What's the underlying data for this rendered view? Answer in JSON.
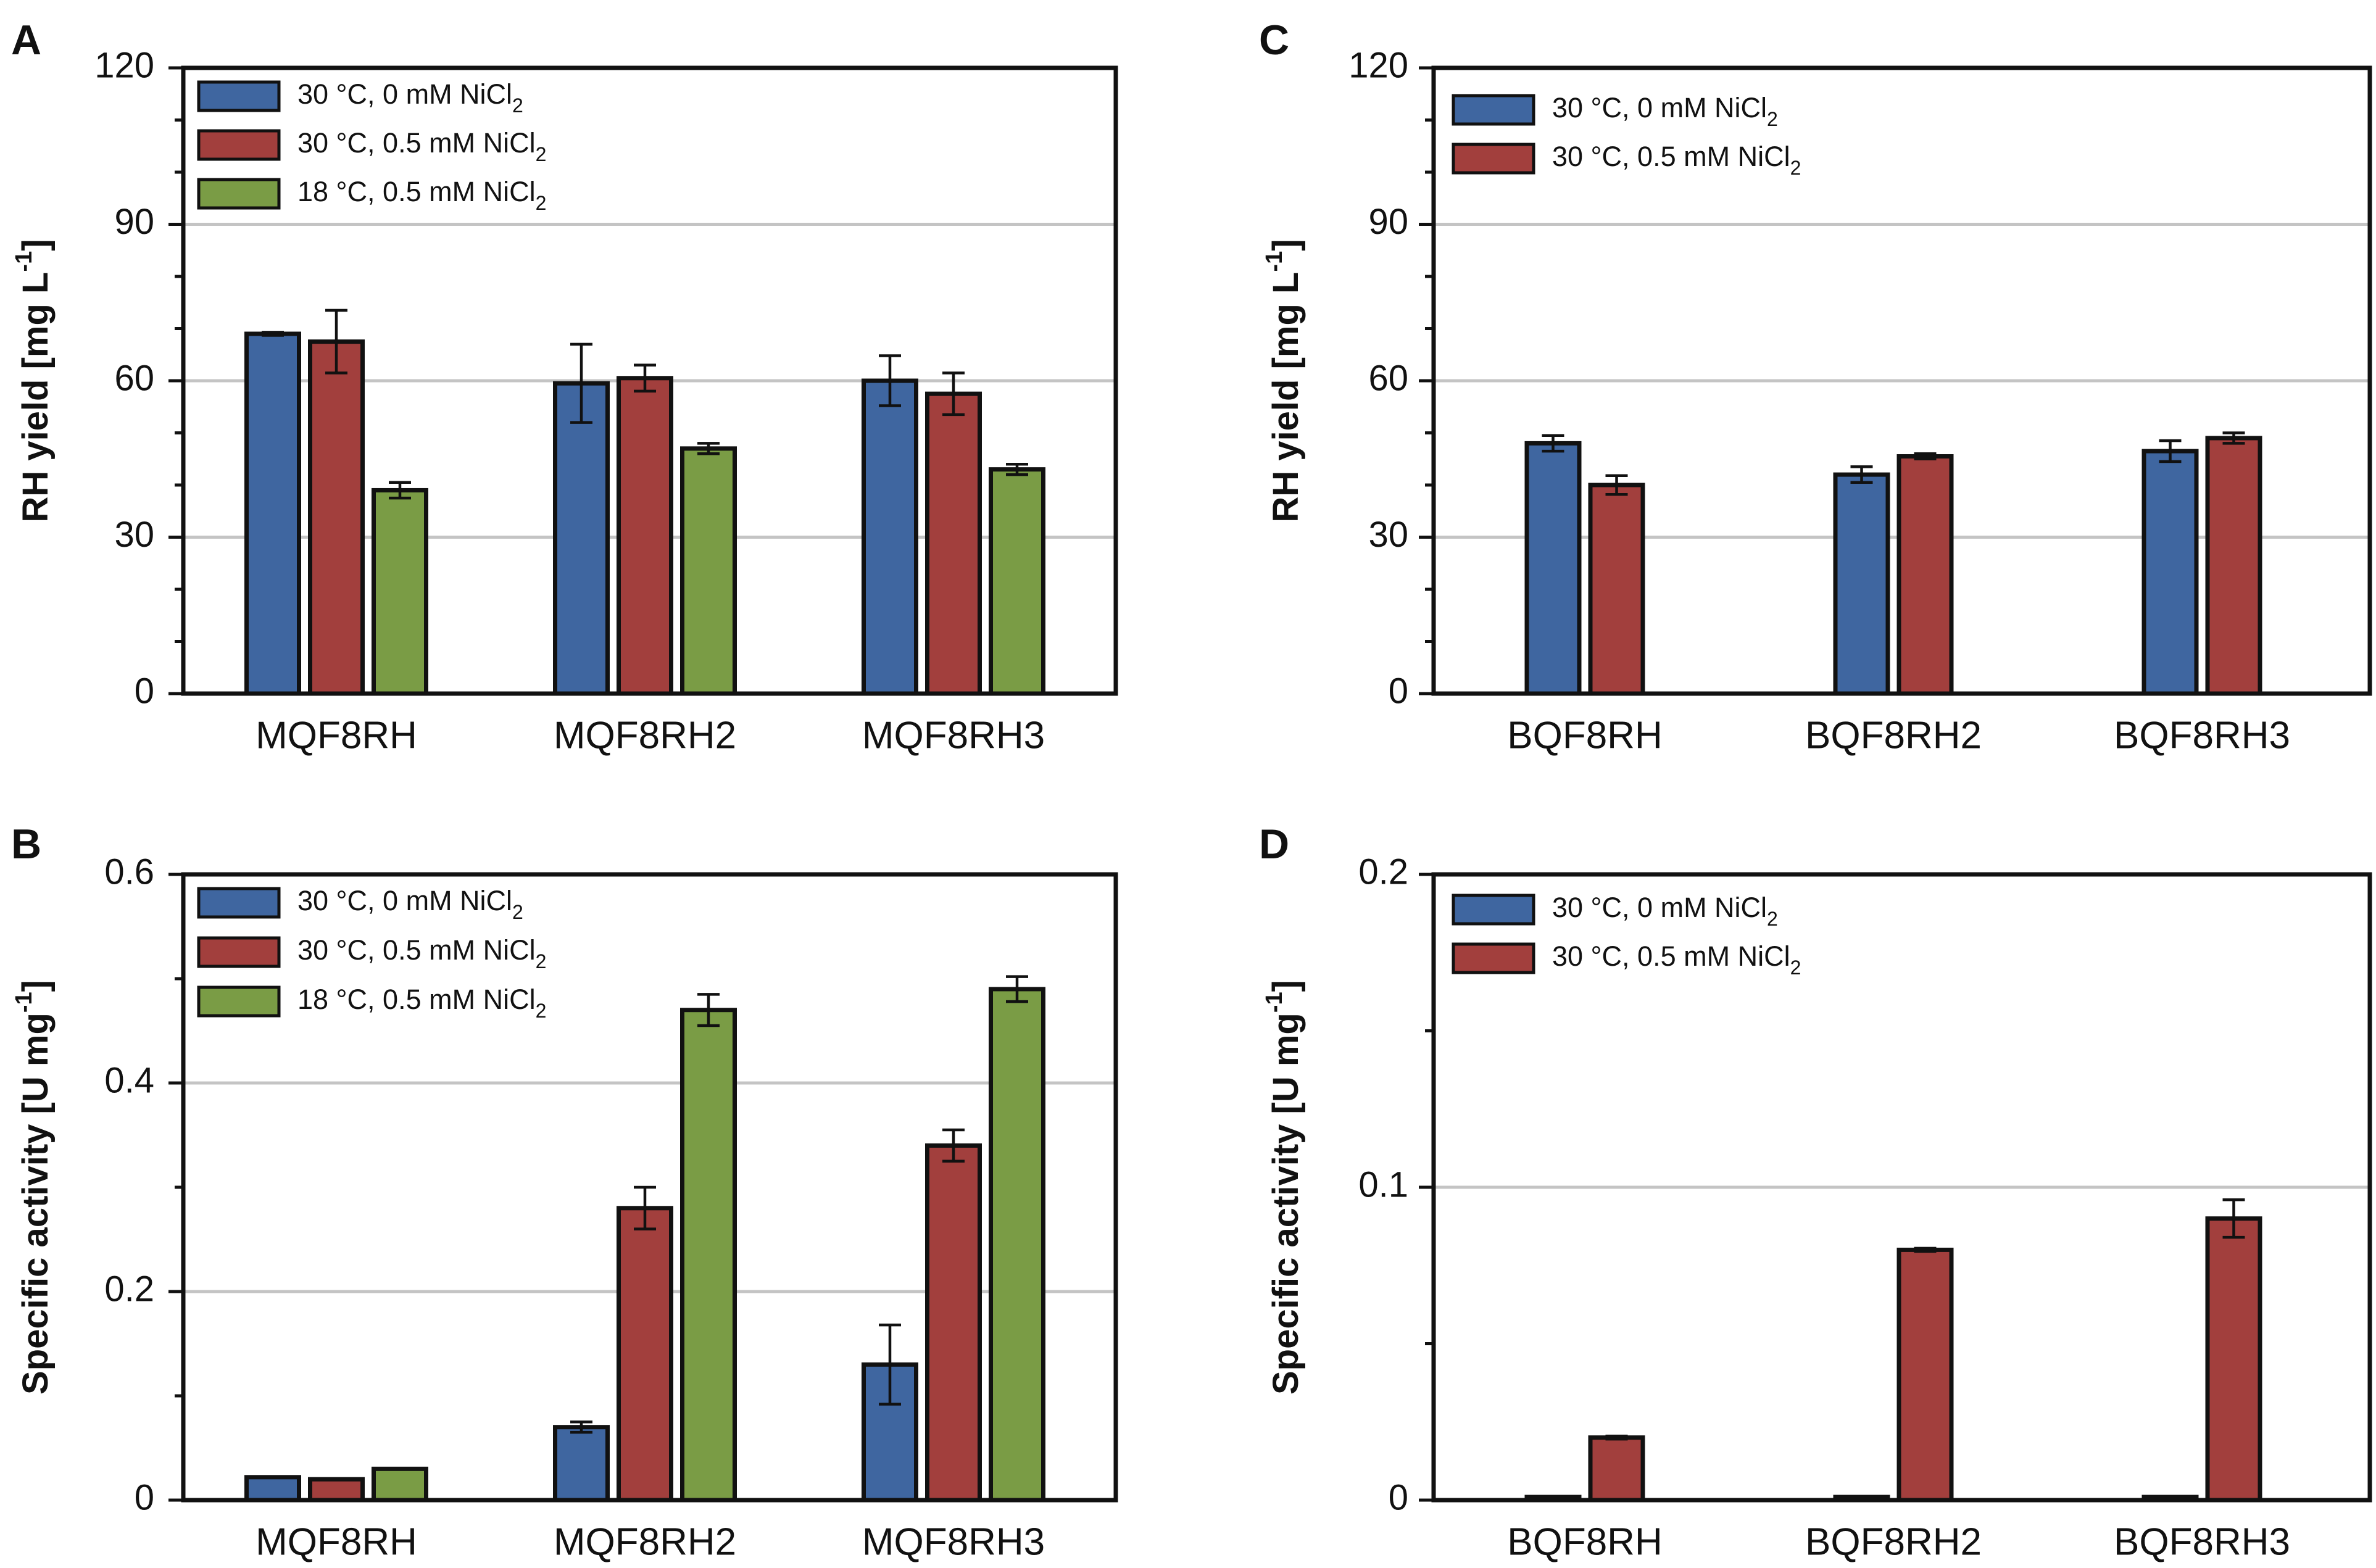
{
  "colors": {
    "blue": "#3f66a0",
    "red": "#a23f3d",
    "green": "#7a9c45",
    "grid": "#c4c4c4",
    "axis": "#111111"
  },
  "legend_labels": [
    "30 °C, 0 mM NiCl",
    "30 °C, 0.5 mM NiCl",
    "18 °C, 0.5 mM NiCl"
  ],
  "legend_subscript": "2",
  "chart_data": [
    {
      "panel": "A",
      "type": "bar",
      "title": "",
      "xlabel": "",
      "ylabel": "RH yield [mg L-1]",
      "ylabel_parts": [
        "RH yield [mg L",
        "-1",
        "]"
      ],
      "ylim": [
        0,
        120
      ],
      "major_ticks": [
        0,
        30,
        60,
        90,
        120
      ],
      "tick_labels": [
        "0",
        "30",
        "60",
        "90",
        "120"
      ],
      "minor_step": 10,
      "grid": true,
      "legend": "top-left",
      "categories": [
        "MQF8RH",
        "MQF8RH2",
        "MQF8RH3"
      ],
      "series": [
        {
          "name": "30 °C, 0 mM NiCl2",
          "color": "blue",
          "values": [
            69,
            59.5,
            60
          ],
          "errors": [
            0.3,
            7.5,
            4.8
          ]
        },
        {
          "name": "30 °C, 0.5 mM NiCl2",
          "color": "red",
          "values": [
            67.5,
            60.5,
            57.5
          ],
          "errors": [
            6,
            2.5,
            4
          ]
        },
        {
          "name": "18 °C, 0.5 mM NiCl2",
          "color": "green",
          "values": [
            39,
            47,
            43
          ],
          "errors": [
            1.5,
            1,
            1
          ]
        }
      ]
    },
    {
      "panel": "B",
      "type": "bar",
      "title": "",
      "xlabel": "",
      "ylabel": "Specific activity [U mg-1]",
      "ylabel_parts": [
        "Specific activity [U mg",
        "-1",
        "]"
      ],
      "ylim": [
        0,
        0.6
      ],
      "major_ticks": [
        0,
        0.2,
        0.4,
        0.6
      ],
      "tick_labels": [
        "0",
        "0.2",
        "0.4",
        "0.6"
      ],
      "minor_step": 0.1,
      "grid": true,
      "legend": "top-left",
      "categories": [
        "MQF8RH",
        "MQF8RH2",
        "MQF8RH3"
      ],
      "series": [
        {
          "name": "30 °C, 0 mM NiCl2",
          "color": "blue",
          "values": [
            0.022,
            0.07,
            0.13
          ],
          "errors": [
            0,
            0.005,
            0.038
          ]
        },
        {
          "name": "30 °C, 0.5 mM NiCl2",
          "color": "red",
          "values": [
            0.02,
            0.28,
            0.34
          ],
          "errors": [
            0,
            0.02,
            0.015
          ]
        },
        {
          "name": "18 °C, 0.5 mM NiCl2",
          "color": "green",
          "values": [
            0.03,
            0.47,
            0.49
          ],
          "errors": [
            0,
            0.015,
            0.012
          ]
        }
      ]
    },
    {
      "panel": "C",
      "type": "bar",
      "title": "",
      "xlabel": "",
      "ylabel": "RH yield [mg L-1]",
      "ylabel_parts": [
        "RH yield [mg L",
        "-1",
        "]"
      ],
      "ylim": [
        0,
        120
      ],
      "major_ticks": [
        0,
        30,
        60,
        90,
        120
      ],
      "tick_labels": [
        "0",
        "30",
        "60",
        "90",
        "120"
      ],
      "minor_step": 10,
      "grid": true,
      "legend": "top-left",
      "categories": [
        "BQF8RH",
        "BQF8RH2",
        "BQF8RH3"
      ],
      "series": [
        {
          "name": "30 °C, 0 mM NiCl2",
          "color": "blue",
          "values": [
            48,
            42,
            46.5
          ],
          "errors": [
            1.5,
            1.5,
            2
          ]
        },
        {
          "name": "30 °C, 0.5 mM NiCl2",
          "color": "red",
          "values": [
            40,
            45.5,
            49
          ],
          "errors": [
            1.8,
            0.5,
            1
          ]
        }
      ]
    },
    {
      "panel": "D",
      "type": "bar",
      "title": "",
      "xlabel": "",
      "ylabel": "Specific activity [U mg-1]",
      "ylabel_parts": [
        "Specific activity [U mg",
        "-1",
        "]"
      ],
      "ylim": [
        0,
        0.2
      ],
      "major_ticks": [
        0,
        0.1,
        0.2
      ],
      "tick_labels": [
        "0",
        "0.1",
        "0.2"
      ],
      "minor_step": 0.05,
      "grid": true,
      "legend": "top-left",
      "categories": [
        "BQF8RH",
        "BQF8RH2",
        "BQF8RH3"
      ],
      "series": [
        {
          "name": "30 °C, 0 mM NiCl2",
          "color": "blue",
          "values": [
            0.001,
            0.001,
            0.001
          ],
          "errors": [
            0,
            0,
            0
          ]
        },
        {
          "name": "30 °C, 0.5 mM NiCl2",
          "color": "red",
          "values": [
            0.02,
            0.08,
            0.09
          ],
          "errors": [
            0.0005,
            0.0005,
            0.006
          ]
        }
      ]
    }
  ]
}
